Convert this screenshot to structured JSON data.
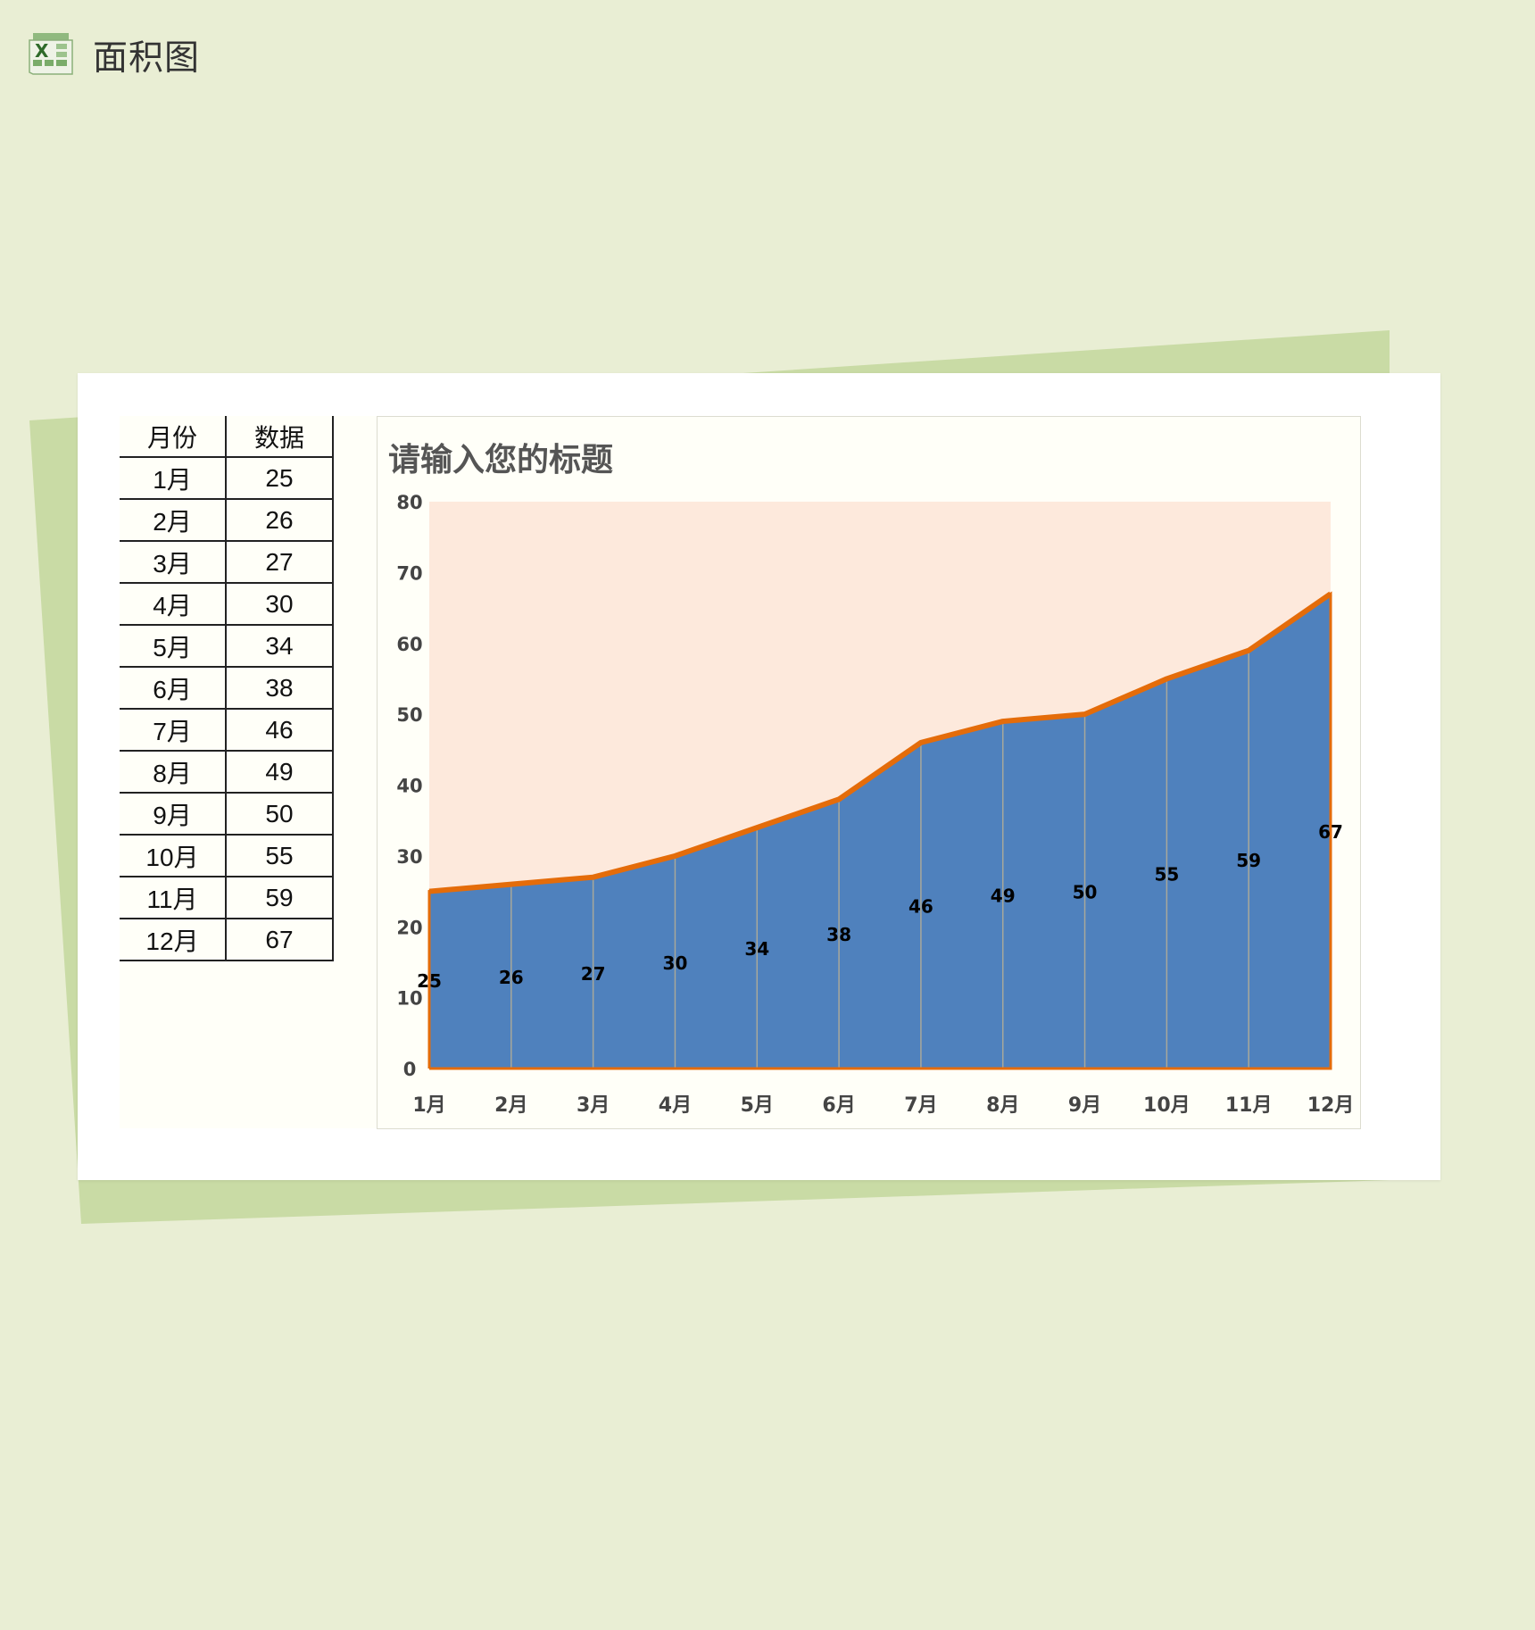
{
  "header": {
    "title": "面积图",
    "icon": "excel-icon"
  },
  "table": {
    "headers": [
      "月份",
      "数据"
    ],
    "rows": [
      [
        "1月",
        "25"
      ],
      [
        "2月",
        "26"
      ],
      [
        "3月",
        "27"
      ],
      [
        "4月",
        "30"
      ],
      [
        "5月",
        "34"
      ],
      [
        "6月",
        "38"
      ],
      [
        "7月",
        "46"
      ],
      [
        "8月",
        "49"
      ],
      [
        "9月",
        "50"
      ],
      [
        "10月",
        "55"
      ],
      [
        "11月",
        "59"
      ],
      [
        "12月",
        "67"
      ]
    ]
  },
  "colors": {
    "page_bg": "#e9eed4",
    "sheet": "#c9dba5",
    "plot_bg": "#fde9dc",
    "area": "#4f81bd",
    "line": "#e46c0a"
  },
  "chart_data": {
    "type": "area",
    "title": "请输入您的标题",
    "categories": [
      "1月",
      "2月",
      "3月",
      "4月",
      "5月",
      "6月",
      "7月",
      "8月",
      "9月",
      "10月",
      "11月",
      "12月"
    ],
    "values": [
      25,
      26,
      27,
      30,
      34,
      38,
      46,
      49,
      50,
      55,
      59,
      67
    ],
    "ylim": [
      0,
      80
    ],
    "yticks": [
      "0",
      "10",
      "20",
      "30",
      "40",
      "50",
      "60",
      "70",
      "80"
    ],
    "data_labels": true,
    "grid": false,
    "legend": "none"
  }
}
